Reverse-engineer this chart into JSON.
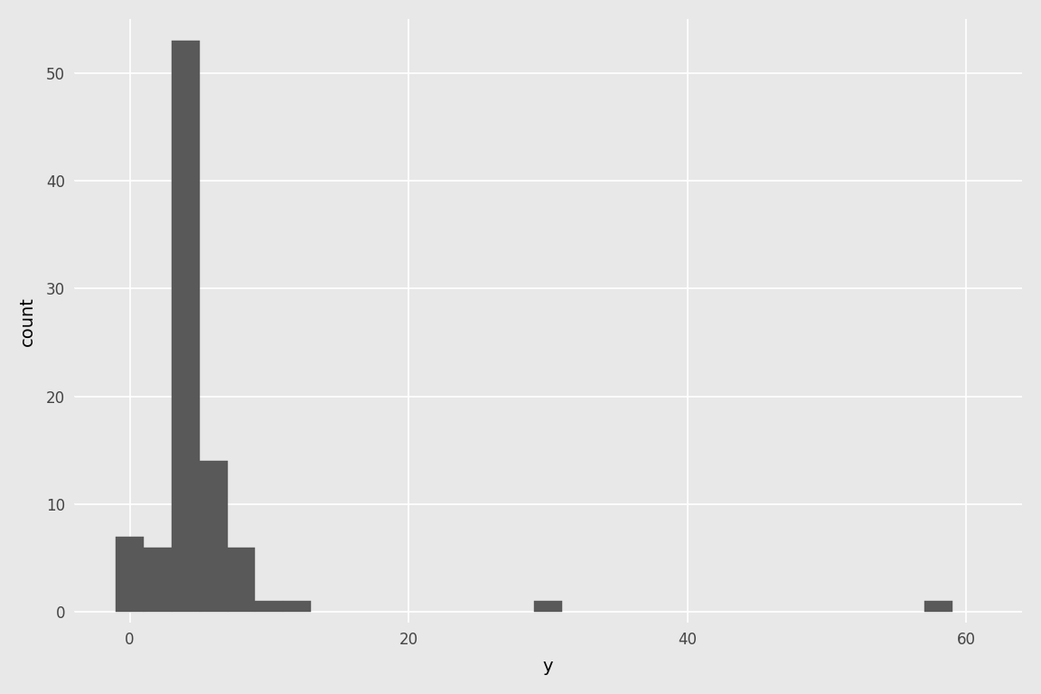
{
  "bin_lefts": [
    -1,
    1,
    3,
    5,
    7,
    9,
    11,
    29,
    57
  ],
  "bin_width": 2,
  "heights": [
    7,
    6,
    53,
    14,
    6,
    1,
    1,
    1,
    1
  ],
  "bar_color": "#595959",
  "bar_edge_color": "#595959",
  "fig_bg_color": "#e8e8e8",
  "panel_bg": "#e8e8e8",
  "grid_color": "#ffffff",
  "xlabel": "y",
  "ylabel": "count",
  "xlim": [
    -4,
    64
  ],
  "ylim": [
    -1,
    55
  ],
  "xticks": [
    0,
    20,
    40,
    60
  ],
  "yticks": [
    0,
    10,
    20,
    30,
    40,
    50
  ],
  "label_fontsize": 14,
  "tick_fontsize": 12,
  "tick_label_color": "#444444"
}
